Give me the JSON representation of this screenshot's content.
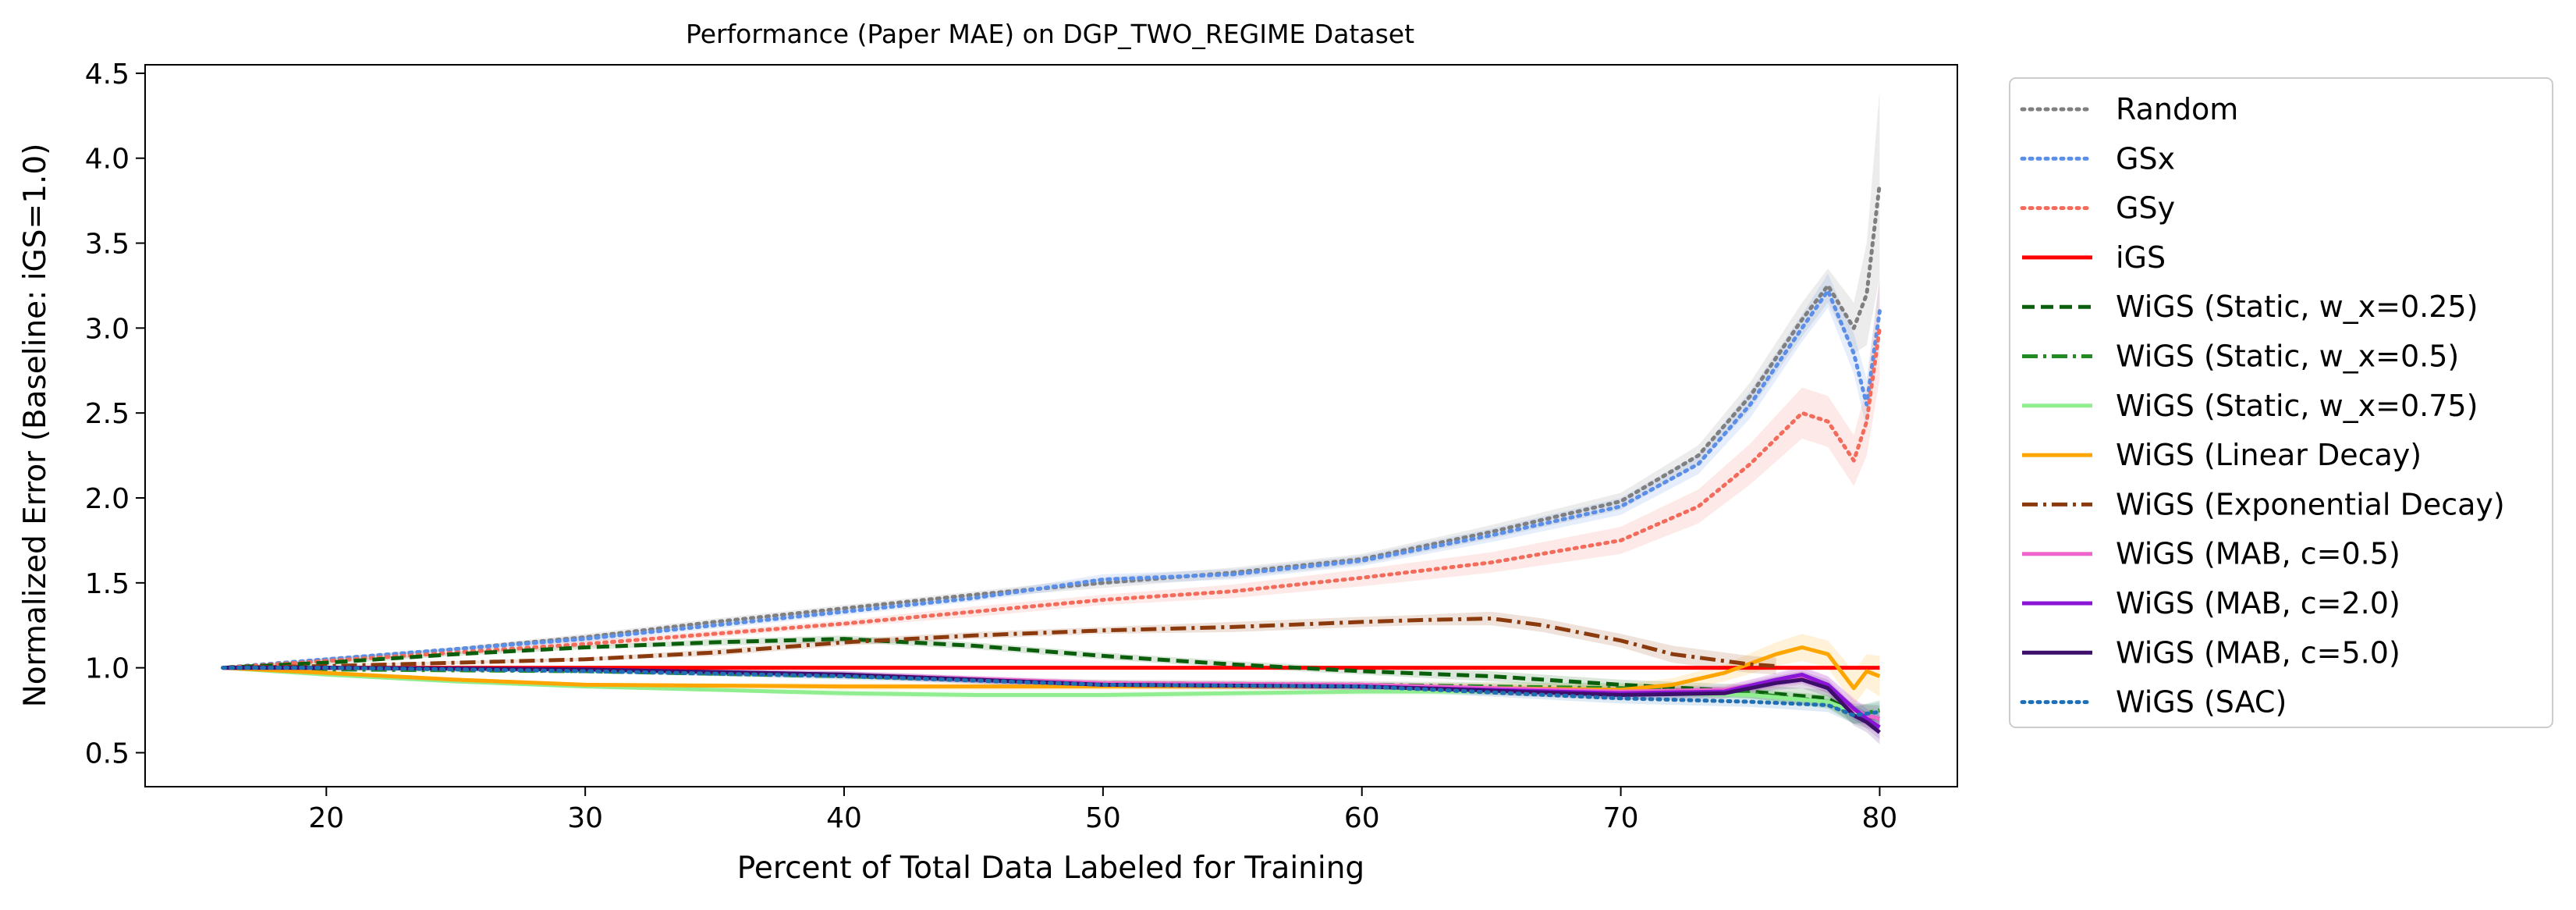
{
  "chart_data": {
    "type": "line",
    "title": "Performance (Paper MAE) on DGP_TWO_REGIME Dataset",
    "xlabel": "Percent of Total Data Labeled for Training",
    "ylabel": "Normalized Error (Baseline: iGS=1.0)",
    "xlim": [
      13,
      83
    ],
    "ylim": [
      0.3,
      4.55
    ],
    "xticks": [
      20,
      30,
      40,
      50,
      60,
      70,
      80
    ],
    "yticks": [
      0.5,
      1.0,
      1.5,
      2.0,
      2.5,
      3.0,
      3.5,
      4.0,
      4.5
    ],
    "tick_labels_x": [
      "20",
      "30",
      "40",
      "50",
      "60",
      "70",
      "80"
    ],
    "tick_labels_y": [
      "0.5",
      "1.0",
      "1.5",
      "2.0",
      "2.5",
      "3.0",
      "3.5",
      "4.0",
      "4.5"
    ],
    "grid": false,
    "legend_position": "outside-right",
    "series": [
      {
        "name": "Random",
        "color": "#7f7f7f",
        "style": "dotted",
        "x": [
          16,
          20,
          25,
          30,
          35,
          40,
          45,
          50,
          55,
          60,
          65,
          70,
          73,
          75,
          77,
          78,
          79,
          79.5,
          80
        ],
        "y": [
          1.0,
          1.05,
          1.11,
          1.18,
          1.27,
          1.35,
          1.43,
          1.5,
          1.56,
          1.64,
          1.8,
          1.98,
          2.25,
          2.6,
          3.05,
          3.25,
          3.0,
          3.2,
          3.85
        ],
        "band": [
          0,
          0.01,
          0.01,
          0.02,
          0.02,
          0.02,
          0.02,
          0.03,
          0.03,
          0.03,
          0.04,
          0.05,
          0.06,
          0.08,
          0.1,
          0.1,
          0.15,
          0.3,
          0.55
        ]
      },
      {
        "name": "GSx",
        "color": "#5b8ee6",
        "style": "dotted",
        "x": [
          16,
          20,
          25,
          30,
          35,
          40,
          45,
          50,
          55,
          60,
          65,
          70,
          73,
          75,
          77,
          78,
          79,
          79.5,
          80
        ],
        "y": [
          1.0,
          1.05,
          1.11,
          1.17,
          1.25,
          1.33,
          1.41,
          1.52,
          1.55,
          1.63,
          1.78,
          1.95,
          2.2,
          2.55,
          3.0,
          3.22,
          2.85,
          2.55,
          3.1
        ],
        "band": [
          0,
          0.01,
          0.01,
          0.02,
          0.02,
          0.02,
          0.02,
          0.03,
          0.03,
          0.03,
          0.04,
          0.05,
          0.06,
          0.08,
          0.08,
          0.1,
          0.12,
          0.15,
          0.2
        ]
      },
      {
        "name": "GSy",
        "color": "#f26b5b",
        "style": "dotted",
        "x": [
          16,
          20,
          25,
          30,
          35,
          40,
          45,
          50,
          55,
          60,
          65,
          70,
          73,
          75,
          77,
          78,
          79,
          79.5,
          80
        ],
        "y": [
          1.0,
          1.04,
          1.09,
          1.14,
          1.2,
          1.26,
          1.33,
          1.4,
          1.45,
          1.53,
          1.62,
          1.75,
          1.95,
          2.2,
          2.5,
          2.45,
          2.22,
          2.45,
          3.0
        ],
        "band": [
          0,
          0.01,
          0.01,
          0.02,
          0.02,
          0.02,
          0.03,
          0.03,
          0.04,
          0.05,
          0.06,
          0.08,
          0.1,
          0.12,
          0.15,
          0.15,
          0.15,
          0.2,
          0.3
        ]
      },
      {
        "name": "iGS",
        "color": "#ff0000",
        "style": "solid",
        "x": [
          16,
          80
        ],
        "y": [
          1.0,
          1.0
        ],
        "band": [
          0,
          0
        ]
      },
      {
        "name": "WiGS (Static, w_x=0.25)",
        "color": "#0b5e0b",
        "style": "dashed",
        "x": [
          16,
          20,
          25,
          30,
          35,
          40,
          45,
          50,
          55,
          60,
          65,
          70,
          75,
          78,
          79,
          80
        ],
        "y": [
          1.0,
          1.03,
          1.08,
          1.12,
          1.15,
          1.17,
          1.13,
          1.07,
          1.02,
          0.98,
          0.95,
          0.9,
          0.86,
          0.82,
          0.73,
          0.7
        ],
        "band": [
          0,
          0.01,
          0.01,
          0.01,
          0.02,
          0.02,
          0.02,
          0.02,
          0.02,
          0.02,
          0.03,
          0.03,
          0.04,
          0.05,
          0.06,
          0.08
        ]
      },
      {
        "name": "WiGS (Static, w_x=0.5)",
        "color": "#228b22",
        "style": "dashdot",
        "x": [
          16,
          20,
          30,
          40,
          50,
          60,
          70,
          75,
          78,
          79,
          80
        ],
        "y": [
          1.0,
          0.99,
          0.98,
          0.95,
          0.91,
          0.9,
          0.88,
          0.85,
          0.8,
          0.72,
          0.75
        ],
        "band": [
          0,
          0.01,
          0.01,
          0.01,
          0.02,
          0.02,
          0.03,
          0.03,
          0.04,
          0.05,
          0.06
        ]
      },
      {
        "name": "WiGS (Static, w_x=0.75)",
        "color": "#90ee90",
        "style": "solid",
        "x": [
          16,
          20,
          25,
          30,
          35,
          40,
          45,
          50,
          55,
          60,
          65,
          70,
          75,
          78,
          79,
          80
        ],
        "y": [
          1.0,
          0.96,
          0.92,
          0.89,
          0.87,
          0.85,
          0.84,
          0.84,
          0.85,
          0.86,
          0.86,
          0.85,
          0.84,
          0.8,
          0.74,
          0.7
        ],
        "band": [
          0,
          0.01,
          0.01,
          0.01,
          0.01,
          0.02,
          0.02,
          0.02,
          0.02,
          0.02,
          0.02,
          0.03,
          0.03,
          0.04,
          0.05,
          0.06
        ]
      },
      {
        "name": "WiGS (Linear Decay)",
        "color": "#ffa500",
        "style": "solid",
        "x": [
          16,
          20,
          25,
          30,
          40,
          50,
          60,
          65,
          70,
          72,
          74,
          76,
          77,
          78,
          79,
          79.5,
          80
        ],
        "y": [
          1.0,
          0.97,
          0.93,
          0.9,
          0.89,
          0.89,
          0.89,
          0.88,
          0.87,
          0.9,
          0.97,
          1.08,
          1.12,
          1.08,
          0.88,
          0.98,
          0.95
        ],
        "band": [
          0,
          0.01,
          0.01,
          0.01,
          0.02,
          0.02,
          0.02,
          0.03,
          0.03,
          0.04,
          0.05,
          0.07,
          0.08,
          0.08,
          0.1,
          0.1,
          0.12
        ]
      },
      {
        "name": "WiGS (Exponential Decay)",
        "color": "#8b3a0e",
        "style": "dashdot",
        "x": [
          16,
          20,
          30,
          35,
          40,
          45,
          50,
          55,
          60,
          62,
          65,
          67,
          70,
          72,
          75,
          76
        ],
        "y": [
          1.0,
          1.01,
          1.05,
          1.09,
          1.15,
          1.19,
          1.22,
          1.24,
          1.27,
          1.28,
          1.29,
          1.25,
          1.16,
          1.08,
          1.02,
          1.01
        ],
        "band": [
          0,
          0.01,
          0.01,
          0.02,
          0.02,
          0.02,
          0.02,
          0.03,
          0.03,
          0.03,
          0.04,
          0.04,
          0.04,
          0.05,
          0.05,
          0.05
        ]
      },
      {
        "name": "WiGS (MAB, c=0.5)",
        "color": "#ee66cc",
        "style": "solid",
        "x": [
          16,
          20,
          30,
          40,
          50,
          60,
          70,
          74,
          76,
          77,
          78,
          79,
          79.5,
          80
        ],
        "y": [
          1.0,
          1.0,
          0.99,
          0.96,
          0.91,
          0.9,
          0.86,
          0.87,
          0.92,
          0.95,
          0.9,
          0.75,
          0.72,
          0.7
        ],
        "band": [
          0,
          0.01,
          0.01,
          0.02,
          0.02,
          0.02,
          0.03,
          0.03,
          0.04,
          0.05,
          0.05,
          0.06,
          0.06,
          0.07
        ]
      },
      {
        "name": "WiGS (MAB, c=2.0)",
        "color": "#8a15d6",
        "style": "solid",
        "x": [
          16,
          20,
          30,
          40,
          50,
          60,
          70,
          74,
          76,
          77,
          78,
          79,
          79.5,
          80
        ],
        "y": [
          1.0,
          1.0,
          0.99,
          0.96,
          0.9,
          0.89,
          0.85,
          0.86,
          0.93,
          0.96,
          0.9,
          0.76,
          0.7,
          0.65
        ],
        "band": [
          0,
          0.01,
          0.01,
          0.02,
          0.02,
          0.02,
          0.03,
          0.03,
          0.04,
          0.05,
          0.05,
          0.06,
          0.06,
          0.07
        ]
      },
      {
        "name": "WiGS (MAB, c=5.0)",
        "color": "#3d0f6b",
        "style": "solid",
        "x": [
          16,
          20,
          30,
          40,
          50,
          60,
          70,
          74,
          76,
          77,
          78,
          79,
          79.5,
          80
        ],
        "y": [
          1.0,
          1.0,
          0.99,
          0.96,
          0.9,
          0.89,
          0.84,
          0.85,
          0.91,
          0.93,
          0.88,
          0.72,
          0.68,
          0.62
        ],
        "band": [
          0,
          0.01,
          0.01,
          0.02,
          0.02,
          0.02,
          0.03,
          0.03,
          0.04,
          0.05,
          0.05,
          0.06,
          0.06,
          0.07
        ]
      },
      {
        "name": "WiGS (SAC)",
        "color": "#1f6fb5",
        "style": "dotted",
        "x": [
          16,
          20,
          30,
          40,
          50,
          60,
          70,
          75,
          78,
          79,
          80
        ],
        "y": [
          1.0,
          1.0,
          0.98,
          0.95,
          0.9,
          0.89,
          0.82,
          0.8,
          0.78,
          0.72,
          0.74
        ],
        "band": [
          0,
          0.01,
          0.01,
          0.02,
          0.02,
          0.02,
          0.03,
          0.03,
          0.04,
          0.05,
          0.06
        ]
      }
    ]
  }
}
